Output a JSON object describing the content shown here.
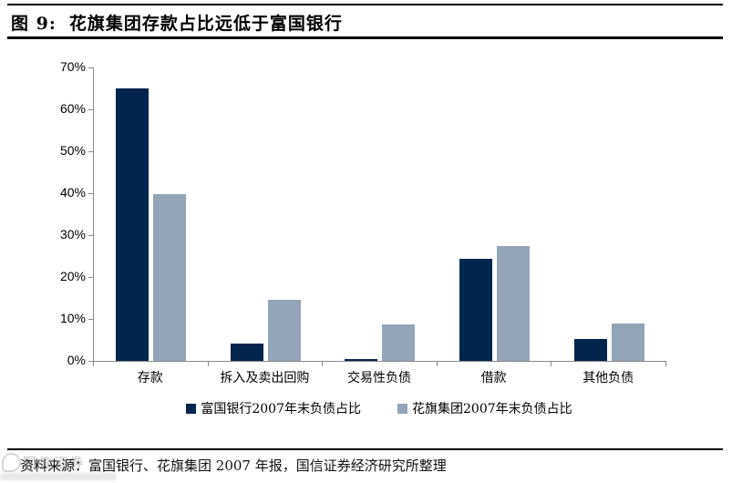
{
  "header": {
    "figure_label": "图 9:",
    "title": "花旗集团存款占比远低于富国银行"
  },
  "chart_data": {
    "type": "bar",
    "categories": [
      "存款",
      "拆入及卖出回购",
      "交易性负债",
      "借款",
      "其他负债"
    ],
    "series": [
      {
        "name": "富国银行2007年末负债占比",
        "color": "#02254d",
        "values": [
          65,
          4.2,
          0.4,
          24.4,
          5.3
        ]
      },
      {
        "name": "花旗集团2007年末负债占比",
        "color": "#95a5b8",
        "values": [
          39.8,
          14.5,
          8.6,
          27.5,
          8.9
        ]
      }
    ],
    "title": "花旗集团存款占比远低于富国银行",
    "xlabel": "",
    "ylabel": "",
    "ylim": [
      0,
      70
    ],
    "y_ticks": [
      "0%",
      "10%",
      "20%",
      "30%",
      "40%",
      "50%",
      "60%",
      "70%"
    ],
    "grid": false,
    "legend_position": "bottom"
  },
  "footer": {
    "source": "资料来源：富国银行、花旗集团 2007 年报，国信证券经济研究所整理"
  },
  "watermark": {
    "text": "国信证券"
  },
  "colors": {
    "navy": "#02254d",
    "gray_blue": "#95a5b8",
    "axis_gray": "#8a8a8a"
  }
}
